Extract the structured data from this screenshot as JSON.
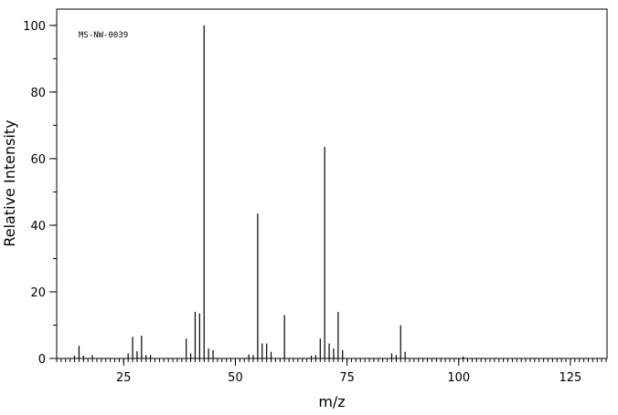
{
  "chart_data": {
    "type": "stem",
    "annotation": "MS-NW-0039",
    "xlabel": "m/z",
    "ylabel": "Relative Intensity",
    "x": [
      14,
      15,
      16,
      18,
      26,
      27,
      28,
      29,
      30,
      31,
      39,
      40,
      41,
      42,
      43,
      44,
      45,
      53,
      54,
      55,
      56,
      57,
      58,
      61,
      67,
      68,
      69,
      70,
      71,
      72,
      73,
      74,
      85,
      86,
      87,
      88,
      101
    ],
    "values": [
      0.8,
      3.8,
      0.8,
      1,
      1.5,
      6.5,
      2.2,
      6.8,
      1,
      1,
      6,
      1.5,
      14,
      13.5,
      100,
      3,
      2.5,
      1.2,
      1,
      43.5,
      4.5,
      4.5,
      2,
      13,
      0.8,
      1,
      6,
      63.5,
      4.5,
      3,
      14,
      2.5,
      1.5,
      1,
      10,
      2,
      0.6
    ],
    "color": "#000000",
    "xlim": [
      10,
      133.2
    ],
    "ylim": [
      0,
      104.9
    ],
    "xticks": [
      25,
      50,
      75,
      100,
      125
    ],
    "yticks": [
      0,
      20,
      40,
      60,
      80,
      100
    ]
  }
}
